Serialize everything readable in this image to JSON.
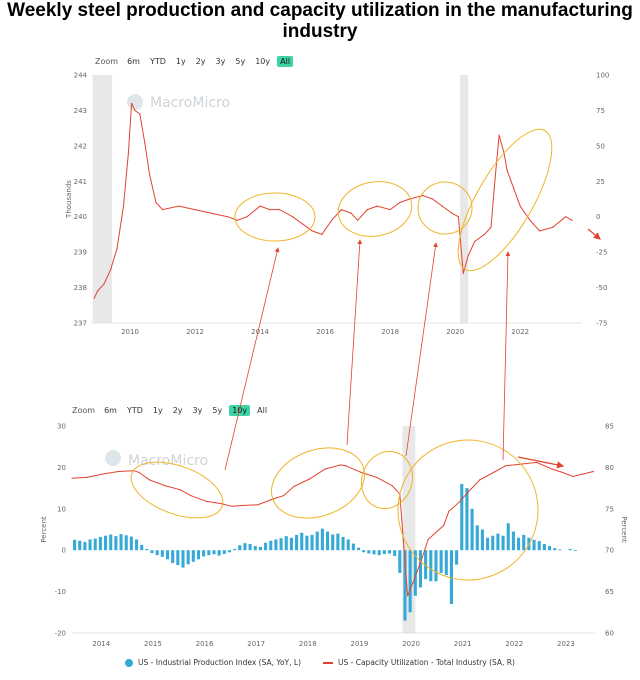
{
  "title": "Weekly steel production and capacity utilization in the manufacturing industry",
  "watermark": "MacroMicro",
  "colors": {
    "accent": "#3fd3a8",
    "steel": "#e2432e",
    "ip_bars": "#36a9d7",
    "cu_line": "#e2432e",
    "annot_ellipse": "#f0b429",
    "annot_arrow": "#e2432e",
    "shade": "#e8e8e8"
  },
  "top_zoom": {
    "label": "Zoom",
    "buttons": [
      "6m",
      "YTD",
      "1y",
      "2y",
      "3y",
      "5y",
      "10y",
      "All"
    ],
    "active": "All"
  },
  "bottom_zoom": {
    "label": "Zoom",
    "buttons": [
      "6m",
      "YTD",
      "1y",
      "2y",
      "3y",
      "5y",
      "10y",
      "All"
    ],
    "active": "10y"
  },
  "legend": {
    "ip": "US - Industrial Production Index (SA, YoY, L)",
    "cu": "US - Capacity Utilization - Total Industry (SA, R)"
  },
  "chart_data": [
    {
      "type": "line",
      "ylabel": "Thousands",
      "ylim": [
        237,
        244
      ],
      "y_ticks": [
        237,
        238,
        239,
        240,
        241,
        242,
        243,
        244
      ],
      "y2lim": [
        -75,
        100
      ],
      "y2_ticks": [
        -75,
        -50,
        -25,
        0,
        25,
        50,
        75,
        100
      ],
      "xlim": [
        2008.8,
        2023.9
      ],
      "x_ticks": [
        2010,
        2012,
        2014,
        2016,
        2018,
        2020,
        2022
      ],
      "shaded_ranges": [
        [
          2008.85,
          2009.45
        ],
        [
          2020.15,
          2020.4
        ]
      ],
      "series": [
        {
          "x": [
            2008.9,
            2009.0,
            2009.2,
            2009.4,
            2009.6,
            2009.8,
            2009.95,
            2010.05,
            2010.15,
            2010.3,
            2010.45,
            2010.6,
            2010.8,
            2011.0,
            2011.5,
            2012.0,
            2012.5,
            2013.0,
            2013.3,
            2013.6,
            2014.0,
            2014.3,
            2014.6,
            2015.0,
            2015.3,
            2015.6,
            2015.9,
            2016.2,
            2016.5,
            2016.8,
            2017.0,
            2017.3,
            2017.6,
            2018.0,
            2018.3,
            2018.6,
            2019.0,
            2019.3,
            2019.6,
            2019.9,
            2020.1,
            2020.25,
            2020.4,
            2020.6,
            2020.9,
            2021.1,
            2021.2,
            2021.35,
            2021.5,
            2021.6,
            2021.8,
            2022.0,
            2022.3,
            2022.6,
            2023.0,
            2023.4,
            2023.6
          ],
          "values": [
            237.7,
            237.9,
            238.1,
            238.5,
            239.1,
            240.3,
            241.8,
            243.2,
            243.0,
            242.9,
            242.1,
            241.2,
            240.4,
            240.2,
            240.3,
            240.2,
            240.1,
            240.0,
            239.9,
            240.0,
            240.3,
            240.2,
            240.2,
            240.0,
            239.8,
            239.6,
            239.5,
            239.9,
            240.2,
            240.1,
            239.9,
            240.2,
            240.3,
            240.2,
            240.4,
            240.5,
            240.6,
            240.5,
            240.3,
            240.1,
            240.0,
            238.4,
            238.9,
            239.3,
            239.5,
            239.7,
            240.8,
            242.3,
            241.8,
            241.3,
            240.8,
            240.3,
            239.9,
            239.6,
            239.7,
            240.0,
            239.9
          ]
        }
      ]
    },
    {
      "type": "bar",
      "ylabel": "Percent",
      "y2label": "Percent",
      "ylim": [
        -20,
        30
      ],
      "y_ticks": [
        -20,
        -10,
        0,
        10,
        20,
        30
      ],
      "y2lim": [
        60,
        85
      ],
      "y2_ticks": [
        60,
        65,
        70,
        75,
        80,
        85
      ],
      "xlim": [
        2013.7,
        2023.85
      ],
      "x_ticks": [
        2014,
        2015,
        2016,
        2017,
        2018,
        2019,
        2020,
        2021,
        2022,
        2023
      ],
      "shaded_ranges": [
        [
          2020.1,
          2020.35
        ]
      ],
      "series": [
        {
          "name": "US - Industrial Production Index (SA, YoY, L)",
          "type": "bar",
          "x": [
            2013.75,
            2013.85,
            2013.95,
            2014.05,
            2014.15,
            2014.25,
            2014.35,
            2014.45,
            2014.55,
            2014.65,
            2014.75,
            2014.85,
            2014.95,
            2015.05,
            2015.15,
            2015.25,
            2015.35,
            2015.45,
            2015.55,
            2015.65,
            2015.75,
            2015.85,
            2015.95,
            2016.05,
            2016.15,
            2016.25,
            2016.35,
            2016.45,
            2016.55,
            2016.65,
            2016.75,
            2016.85,
            2016.95,
            2017.05,
            2017.15,
            2017.25,
            2017.35,
            2017.45,
            2017.55,
            2017.65,
            2017.75,
            2017.85,
            2017.95,
            2018.05,
            2018.15,
            2018.25,
            2018.35,
            2018.45,
            2018.55,
            2018.65,
            2018.75,
            2018.85,
            2018.95,
            2019.05,
            2019.15,
            2019.25,
            2019.35,
            2019.45,
            2019.55,
            2019.65,
            2019.75,
            2019.85,
            2019.95,
            2020.05,
            2020.15,
            2020.25,
            2020.35,
            2020.45,
            2020.55,
            2020.65,
            2020.75,
            2020.85,
            2020.95,
            2021.05,
            2021.15,
            2021.25,
            2021.35,
            2021.45,
            2021.55,
            2021.65,
            2021.75,
            2021.85,
            2021.95,
            2022.05,
            2022.15,
            2022.25,
            2022.35,
            2022.45,
            2022.55,
            2022.65,
            2022.75,
            2022.85,
            2022.95,
            2023.05,
            2023.15,
            2023.25,
            2023.35,
            2023.45,
            2023.55
          ],
          "values": [
            2.5,
            2.3,
            2.0,
            2.6,
            2.8,
            3.2,
            3.5,
            3.8,
            3.4,
            3.9,
            3.6,
            3.3,
            2.6,
            1.3,
            0.3,
            -0.7,
            -1.2,
            -1.6,
            -2.2,
            -3.1,
            -3.6,
            -4.2,
            -3.4,
            -2.8,
            -2.2,
            -1.5,
            -1.2,
            -1.0,
            -1.3,
            -0.9,
            -0.5,
            0.3,
            1.2,
            1.7,
            1.5,
            1.0,
            0.8,
            1.8,
            2.3,
            2.6,
            2.9,
            3.4,
            3.0,
            3.7,
            4.2,
            3.5,
            3.7,
            4.5,
            5.2,
            4.5,
            3.8,
            4.0,
            3.2,
            2.6,
            1.6,
            0.6,
            -0.5,
            -0.8,
            -1.0,
            -1.2,
            -0.9,
            -0.8,
            -1.4,
            -5.5,
            -17.0,
            -15.0,
            -11.0,
            -9.0,
            -7.0,
            -7.5,
            -7.5,
            -5.5,
            -6.0,
            -13.0,
            -3.5,
            16.0,
            15.0,
            10.0,
            6.0,
            5.0,
            3.0,
            3.5,
            4.0,
            3.5,
            6.5,
            4.5,
            3.0,
            3.7,
            3.0,
            2.5,
            2.2,
            1.5,
            1.0,
            0.5,
            0.2,
            0.0,
            0.3,
            -0.2,
            0.0
          ]
        },
        {
          "name": "US - Capacity Utilization - Total Industry (SA, R)",
          "type": "line",
          "axis": "right",
          "x": [
            2013.7,
            2014.0,
            2014.3,
            2014.6,
            2014.9,
            2015.0,
            2015.2,
            2015.5,
            2015.8,
            2016.0,
            2016.3,
            2016.6,
            2016.8,
            2017.0,
            2017.3,
            2017.6,
            2017.8,
            2018.0,
            2018.3,
            2018.6,
            2018.9,
            2019.0,
            2019.3,
            2019.6,
            2019.9,
            2020.05,
            2020.2,
            2020.3,
            2020.45,
            2020.6,
            2020.9,
            2021.0,
            2021.2,
            2021.4,
            2021.6,
            2021.9,
            2022.1,
            2022.4,
            2022.7,
            2023.0,
            2023.2,
            2023.4,
            2023.6,
            2023.8
          ],
          "values": [
            78.7,
            78.8,
            79.2,
            79.5,
            79.6,
            79.4,
            78.5,
            77.8,
            77.3,
            76.6,
            75.9,
            75.6,
            75.3,
            75.4,
            75.5,
            76.2,
            76.6,
            77.7,
            78.6,
            79.8,
            80.3,
            80.2,
            79.4,
            78.8,
            77.8,
            76.8,
            64.5,
            66.0,
            68.5,
            71.3,
            73.0,
            74.7,
            75.8,
            77.2,
            78.5,
            79.5,
            80.2,
            80.4,
            80.6,
            79.8,
            79.4,
            78.9,
            79.2,
            79.5
          ]
        }
      ]
    }
  ]
}
